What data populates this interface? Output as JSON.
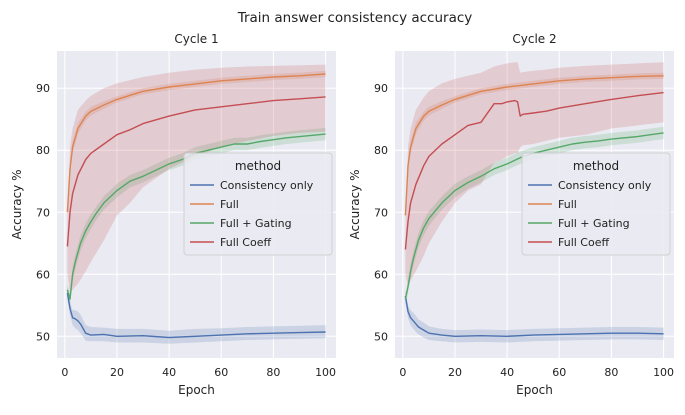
{
  "figure": {
    "suptitle": "Train answer consistency accuracy"
  },
  "colors": {
    "Consistency only": "#4c72b0",
    "Full": "#dd8452",
    "Full + Gating": "#55a868",
    "Full Coeff": "#c44e52"
  },
  "chart_data": [
    {
      "type": "line",
      "title": "Cycle 1",
      "xlabel": "Epoch",
      "ylabel": "Accuracy %",
      "xlim": [
        -3,
        104
      ],
      "ylim": [
        46.5,
        96
      ],
      "xticks": [
        0,
        20,
        40,
        60,
        80,
        100
      ],
      "yticks": [
        50,
        60,
        70,
        80,
        90
      ],
      "grid": true,
      "legend": {
        "title": "method",
        "placement": "center-right"
      },
      "series": [
        {
          "name": "Consistency only",
          "x": [
            1,
            2,
            3,
            4,
            5,
            6,
            8,
            10,
            15,
            20,
            30,
            40,
            50,
            60,
            70,
            80,
            90,
            100
          ],
          "y": [
            57.0,
            54.5,
            53.0,
            52.8,
            52.5,
            52.0,
            50.5,
            50.2,
            50.3,
            50.0,
            50.1,
            49.8,
            50.0,
            50.2,
            50.4,
            50.5,
            50.6,
            50.7
          ],
          "lower": [
            56.0,
            53.5,
            51.8,
            51.3,
            51.0,
            50.5,
            49.3,
            49.2,
            49.2,
            49.0,
            49.0,
            48.8,
            49.0,
            49.2,
            49.4,
            49.5,
            49.6,
            49.7
          ],
          "upper": [
            58.0,
            55.5,
            54.2,
            54.2,
            54.0,
            53.5,
            51.8,
            51.5,
            51.4,
            51.2,
            51.2,
            50.9,
            51.2,
            51.3,
            51.5,
            51.6,
            51.7,
            51.8
          ]
        },
        {
          "name": "Full",
          "x": [
            1,
            2,
            3,
            5,
            8,
            10,
            15,
            20,
            30,
            40,
            50,
            60,
            70,
            80,
            90,
            100
          ],
          "y": [
            70.0,
            77.0,
            80.5,
            83.5,
            85.5,
            86.3,
            87.3,
            88.2,
            89.5,
            90.2,
            90.7,
            91.2,
            91.5,
            91.8,
            92.0,
            92.3
          ],
          "lower": [
            69.0,
            76.0,
            79.5,
            82.6,
            84.8,
            85.6,
            86.7,
            87.7,
            89.0,
            89.7,
            90.2,
            90.7,
            91.0,
            91.3,
            91.5,
            91.8
          ],
          "upper": [
            71.0,
            78.0,
            81.5,
            84.4,
            86.2,
            87.0,
            87.9,
            88.7,
            90.0,
            90.7,
            91.2,
            91.7,
            92.0,
            92.3,
            92.5,
            92.8
          ]
        },
        {
          "name": "Full + Gating",
          "x": [
            1,
            2,
            3,
            4,
            5,
            6,
            8,
            10,
            12,
            15,
            20,
            25,
            30,
            35,
            40,
            45,
            50,
            55,
            60,
            65,
            70,
            75,
            80,
            85,
            90,
            95,
            100
          ],
          "y": [
            57.5,
            56.0,
            60.0,
            62.0,
            63.5,
            65.0,
            67.0,
            68.5,
            69.8,
            71.5,
            73.5,
            75.0,
            75.8,
            76.8,
            77.8,
            78.5,
            79.5,
            80.0,
            80.5,
            81.0,
            81.0,
            81.4,
            81.7,
            82.0,
            82.2,
            82.4,
            82.6
          ],
          "lower": [
            56.5,
            55.0,
            58.8,
            60.8,
            62.3,
            63.8,
            65.8,
            67.3,
            68.7,
            70.4,
            72.4,
            74.0,
            74.8,
            75.8,
            76.8,
            77.5,
            78.5,
            79.0,
            79.5,
            80.0,
            80.0,
            80.4,
            80.7,
            81.0,
            81.2,
            81.4,
            81.6
          ],
          "upper": [
            58.5,
            57.0,
            61.2,
            63.2,
            64.7,
            66.2,
            68.2,
            69.7,
            70.9,
            72.6,
            74.6,
            76.0,
            76.8,
            77.8,
            78.8,
            79.5,
            80.5,
            81.0,
            81.5,
            82.0,
            82.0,
            82.4,
            82.7,
            83.0,
            83.2,
            83.4,
            83.6
          ]
        },
        {
          "name": "Full Coeff",
          "x": [
            1,
            2,
            3,
            5,
            8,
            10,
            15,
            20,
            25,
            30,
            40,
            50,
            60,
            70,
            80,
            90,
            100
          ],
          "y": [
            64.5,
            70.0,
            73.0,
            76.0,
            78.5,
            79.5,
            81.0,
            82.5,
            83.3,
            84.3,
            85.5,
            86.5,
            87.0,
            87.5,
            88.0,
            88.3,
            88.6
          ],
          "lower": [
            60.0,
            57.0,
            57.5,
            58.5,
            60.5,
            62.0,
            65.5,
            69.5,
            71.5,
            74.0,
            77.0,
            79.0,
            80.5,
            81.5,
            82.3,
            82.8,
            83.0
          ],
          "upper": [
            68.0,
            80.5,
            83.5,
            86.5,
            88.0,
            88.8,
            90.0,
            90.8,
            91.3,
            91.8,
            92.5,
            93.0,
            93.3,
            93.5,
            93.6,
            93.7,
            93.8
          ]
        }
      ]
    },
    {
      "type": "line",
      "title": "Cycle 2",
      "xlabel": "Epoch",
      "ylabel": "Accuracy %",
      "xlim": [
        -3,
        104
      ],
      "ylim": [
        46.5,
        96
      ],
      "xticks": [
        0,
        20,
        40,
        60,
        80,
        100
      ],
      "yticks": [
        50,
        60,
        70,
        80,
        90
      ],
      "grid": true,
      "legend": {
        "title": "method",
        "placement": "center-right"
      },
      "series": [
        {
          "name": "Consistency only",
          "x": [
            1,
            2,
            3,
            4,
            5,
            6,
            8,
            10,
            15,
            20,
            30,
            40,
            50,
            60,
            70,
            80,
            90,
            100
          ],
          "y": [
            56.5,
            54.0,
            53.0,
            52.5,
            52.0,
            51.5,
            51.0,
            50.5,
            50.2,
            50.0,
            50.1,
            50.0,
            50.2,
            50.3,
            50.4,
            50.5,
            50.5,
            50.4
          ],
          "lower": [
            55.5,
            53.0,
            51.8,
            51.2,
            50.7,
            50.3,
            49.8,
            49.4,
            49.2,
            49.0,
            49.1,
            49.0,
            49.2,
            49.3,
            49.4,
            49.5,
            49.5,
            49.4
          ],
          "upper": [
            57.5,
            55.0,
            54.2,
            53.8,
            53.3,
            52.7,
            52.2,
            51.6,
            51.2,
            51.0,
            51.1,
            51.0,
            51.2,
            51.3,
            51.4,
            51.5,
            51.5,
            51.4
          ]
        },
        {
          "name": "Full",
          "x": [
            1,
            2,
            3,
            5,
            8,
            10,
            15,
            20,
            30,
            40,
            50,
            60,
            70,
            80,
            90,
            100
          ],
          "y": [
            69.5,
            77.5,
            80.5,
            83.5,
            85.5,
            86.3,
            87.3,
            88.2,
            89.5,
            90.2,
            90.7,
            91.2,
            91.5,
            91.7,
            91.9,
            92.0
          ],
          "lower": [
            68.5,
            76.5,
            79.5,
            82.6,
            84.8,
            85.6,
            86.7,
            87.7,
            89.0,
            89.7,
            90.2,
            90.7,
            91.0,
            91.2,
            91.4,
            91.5
          ],
          "upper": [
            70.5,
            78.5,
            81.5,
            84.4,
            86.2,
            87.0,
            87.9,
            88.7,
            90.0,
            90.7,
            91.2,
            91.7,
            92.0,
            92.2,
            92.4,
            92.5
          ]
        },
        {
          "name": "Full + Gating",
          "x": [
            1,
            2,
            3,
            4,
            5,
            6,
            8,
            10,
            12,
            15,
            20,
            25,
            30,
            35,
            40,
            45,
            50,
            55,
            60,
            65,
            70,
            75,
            80,
            85,
            90,
            95,
            100
          ],
          "y": [
            56.0,
            58.0,
            60.5,
            62.5,
            64.0,
            65.5,
            67.5,
            69.0,
            70.0,
            71.5,
            73.5,
            74.8,
            75.8,
            77.0,
            77.8,
            78.8,
            79.5,
            80.0,
            80.5,
            81.0,
            81.3,
            81.5,
            81.8,
            82.0,
            82.2,
            82.5,
            82.8
          ],
          "lower": [
            55.0,
            57.0,
            59.3,
            61.3,
            62.8,
            64.3,
            66.3,
            67.8,
            68.9,
            70.4,
            72.4,
            73.8,
            74.8,
            76.0,
            76.8,
            77.8,
            78.5,
            79.0,
            79.5,
            80.0,
            80.3,
            80.5,
            80.8,
            81.0,
            81.2,
            81.5,
            81.8
          ],
          "upper": [
            57.0,
            59.0,
            61.7,
            63.7,
            65.2,
            66.7,
            68.7,
            70.2,
            71.1,
            72.6,
            74.6,
            75.8,
            76.8,
            78.0,
            78.8,
            79.8,
            80.5,
            81.0,
            81.5,
            82.0,
            82.3,
            82.5,
            82.8,
            83.0,
            83.2,
            83.5,
            83.8
          ]
        },
        {
          "name": "Full Coeff",
          "x": [
            1,
            2,
            3,
            5,
            8,
            10,
            15,
            20,
            25,
            30,
            35,
            38,
            40,
            43,
            44,
            45,
            46,
            50,
            55,
            60,
            70,
            80,
            90,
            100
          ],
          "y": [
            64.0,
            68.5,
            71.5,
            74.5,
            77.5,
            79.0,
            81.0,
            82.5,
            84.0,
            84.5,
            87.5,
            87.5,
            87.8,
            88.0,
            87.8,
            85.5,
            85.8,
            86.0,
            86.3,
            86.8,
            87.5,
            88.2,
            88.8,
            89.3
          ],
          "lower": [
            60.0,
            58.0,
            59.0,
            60.5,
            63.0,
            65.0,
            68.5,
            71.5,
            73.5,
            74.5,
            78.0,
            78.5,
            79.0,
            79.5,
            79.5,
            80.5,
            80.8,
            81.0,
            81.5,
            82.0,
            82.5,
            83.5,
            84.0,
            84.5
          ],
          "upper": [
            67.0,
            80.5,
            83.5,
            86.5,
            88.5,
            89.5,
            90.8,
            91.5,
            92.0,
            92.5,
            93.5,
            93.8,
            94.0,
            94.2,
            94.2,
            92.5,
            92.6,
            92.8,
            93.0,
            93.3,
            93.6,
            93.8,
            94.0,
            94.2
          ]
        }
      ]
    }
  ]
}
